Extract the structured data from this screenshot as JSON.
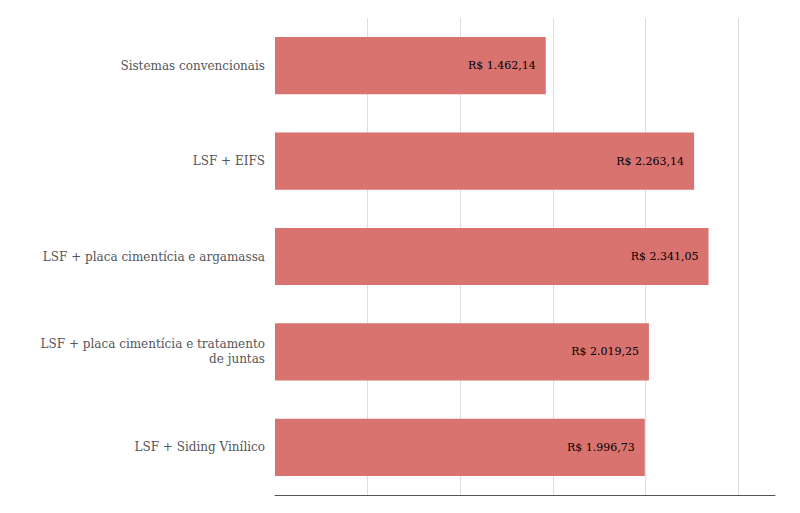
{
  "chart_data": {
    "type": "bar",
    "orientation": "horizontal",
    "categories": [
      "LSF + Siding Vinílico",
      "LSF + placa cimentícia e tratamento\nde juntas",
      "LSF + placa cimentícia e argamassa",
      "LSF + EIFS",
      "Sistemas convencionais"
    ],
    "values": [
      1996.73,
      2019.25,
      2341.05,
      2263.14,
      1462.14
    ],
    "value_labels": [
      "R$ 1.996,73",
      "R$ 2.019,25",
      "R$ 2.341,05",
      "R$ 2.263,14",
      "R$ 1.462,14"
    ],
    "color": "#d9736f",
    "xlim": [
      0,
      2700
    ],
    "xticks": [
      500,
      1000,
      1500,
      2000,
      2500
    ],
    "grid": true,
    "data_labels": true,
    "tick_labels": "y"
  }
}
